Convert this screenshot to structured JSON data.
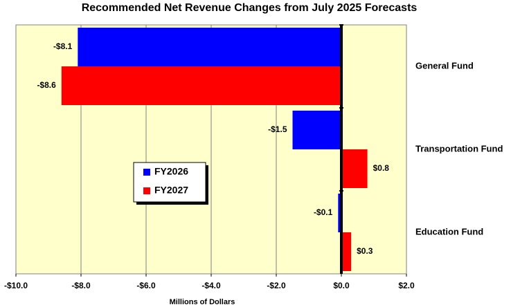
{
  "chart_data": {
    "type": "bar",
    "orientation": "horizontal",
    "title": "Recommended Net Revenue Changes from July 2025 Forecasts",
    "x_label": "Millions of Dollars",
    "categories": [
      "General Fund",
      "Transportation Fund",
      "Education Fund"
    ],
    "series": [
      {
        "name": "FY2026",
        "color": "#0000ff",
        "values": [
          -8.1,
          -1.5,
          -0.1
        ],
        "value_labels": [
          "-$8.1",
          "-$1.5",
          "-$0.1"
        ]
      },
      {
        "name": "FY2027",
        "color": "#ff0000",
        "values": [
          -8.6,
          0.8,
          0.3
        ],
        "value_labels": [
          "-$8.6",
          "$0.8",
          "$0.3"
        ]
      }
    ],
    "xlim": [
      -10,
      2
    ],
    "xticks": [
      {
        "value": -10,
        "label": "-$10.0"
      },
      {
        "value": -8,
        "label": "-$8.0"
      },
      {
        "value": -6,
        "label": "-$6.0"
      },
      {
        "value": -4,
        "label": "-$4.0"
      },
      {
        "value": -2,
        "label": "-$2.0"
      },
      {
        "value": 0,
        "label": "$0.0"
      },
      {
        "value": 2,
        "label": "$2.0"
      }
    ],
    "grid": true,
    "legend_position": "center-left",
    "background": "#ffffcc"
  }
}
